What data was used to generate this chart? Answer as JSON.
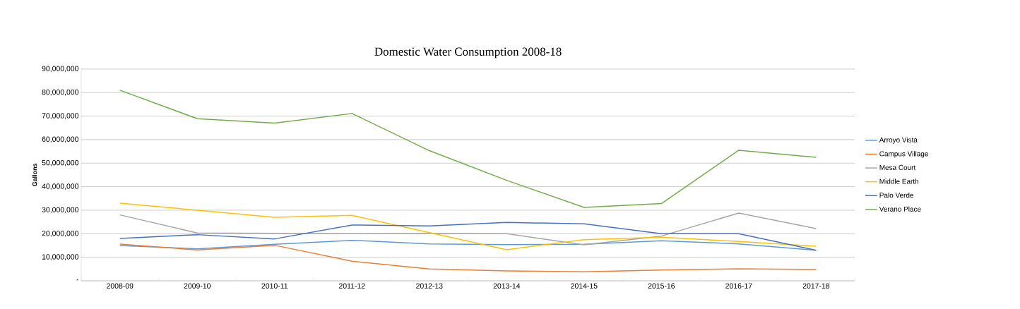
{
  "chart_data": {
    "type": "line",
    "title": "Domestic Water Consumption 2008-18",
    "ylabel": "Gallons",
    "categories": [
      "2008-09",
      "2009-10",
      "2010-11",
      "2011-12",
      "2012-13",
      "2013-14",
      "2014-15",
      "2015-16",
      "2016-17",
      "2017-18"
    ],
    "series": [
      {
        "name": "Arroyo Vista",
        "color": "#5b9bd5",
        "values": [
          15000000,
          13600000,
          15500000,
          17200000,
          15700000,
          15400000,
          15500000,
          17000000,
          15700000,
          13000000
        ]
      },
      {
        "name": "Campus Village",
        "color": "#ed7d31",
        "values": [
          15600000,
          13100000,
          15100000,
          8300000,
          5000000,
          4200000,
          3800000,
          4600000,
          5100000,
          4800000
        ]
      },
      {
        "name": "Mesa Court",
        "color": "#a5a5a5",
        "values": [
          28000000,
          20300000,
          20200000,
          20000000,
          20200000,
          20000000,
          15300000,
          19000000,
          28800000,
          22200000
        ]
      },
      {
        "name": "Middle Earth",
        "color": "#ffc000",
        "values": [
          33000000,
          30000000,
          27000000,
          27800000,
          20500000,
          13200000,
          17500000,
          18500000,
          16700000,
          14700000
        ]
      },
      {
        "name": "Palo Verde",
        "color": "#4472c4",
        "values": [
          18000000,
          19600000,
          17800000,
          23700000,
          23300000,
          24800000,
          24200000,
          20000000,
          20000000,
          13000000
        ]
      },
      {
        "name": "Verano Place",
        "color": "#70ad47",
        "values": [
          81000000,
          68900000,
          67000000,
          71100000,
          55300000,
          42700000,
          31200000,
          32800000,
          55500000,
          52500000
        ]
      }
    ],
    "ylim": [
      0,
      90000000
    ],
    "yticks": [
      {
        "value": 0,
        "label": "-"
      },
      {
        "value": 10000000,
        "label": "10,000,000"
      },
      {
        "value": 20000000,
        "label": "20,000,000"
      },
      {
        "value": 30000000,
        "label": "30,000,000"
      },
      {
        "value": 40000000,
        "label": "40,000,000"
      },
      {
        "value": 50000000,
        "label": "50,000,000"
      },
      {
        "value": 60000000,
        "label": "60,000,000"
      },
      {
        "value": 70000000,
        "label": "70,000,000"
      },
      {
        "value": 80000000,
        "label": "80,000,000"
      },
      {
        "value": 90000000,
        "label": "90,000,000"
      }
    ],
    "grid": "y",
    "legend": "right",
    "marker": "none",
    "line_style": "solid"
  }
}
